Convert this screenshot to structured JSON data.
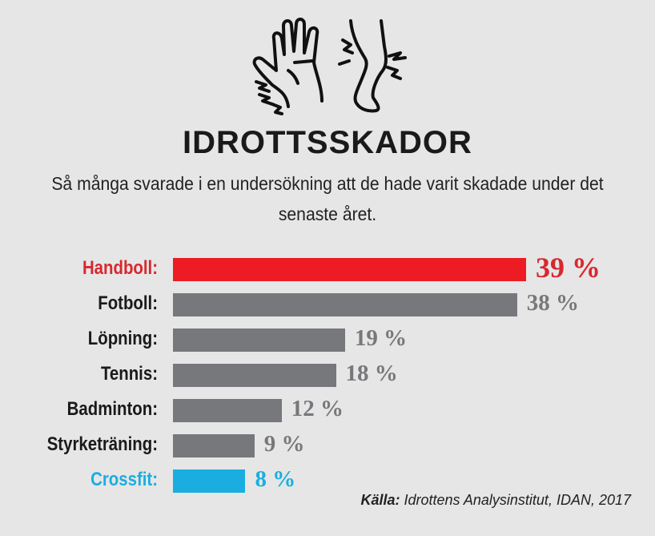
{
  "chart_data": {
    "type": "bar",
    "orientation": "horizontal",
    "title": "IDROTTSSKADOR",
    "subtitle": "Så många svarade i en undersökning att de hade varit skadade under det senaste året.",
    "categories": [
      "Handboll:",
      "Fotboll:",
      "Löpning:",
      "Tennis:",
      "Badminton:",
      "Styrketräning:",
      "Crossfit:"
    ],
    "values": [
      39,
      38,
      19,
      18,
      12,
      9,
      8
    ],
    "data_labels": [
      "39 %",
      "38 %",
      "19 %",
      "18 %",
      "12 %",
      "9 %",
      "8 %"
    ],
    "colors": [
      "#ed1c24",
      "#77787b",
      "#77787b",
      "#77787b",
      "#77787b",
      "#77787b",
      "#1aaee0"
    ],
    "label_colors": [
      "#d7282f",
      "#1a1a1a",
      "#1a1a1a",
      "#1a1a1a",
      "#1a1a1a",
      "#1a1a1a",
      "#1aaee0"
    ],
    "value_colors": [
      "#d7282f",
      "#77787b",
      "#77787b",
      "#77787b",
      "#77787b",
      "#77787b",
      "#1aaee0"
    ],
    "unit": "%",
    "grid": false,
    "source_label": "Källa:",
    "source": "Idrottens Analysinstitut, IDAN, 2017",
    "icons": [
      "injured-hand-icon",
      "injured-leg-icon"
    ]
  }
}
